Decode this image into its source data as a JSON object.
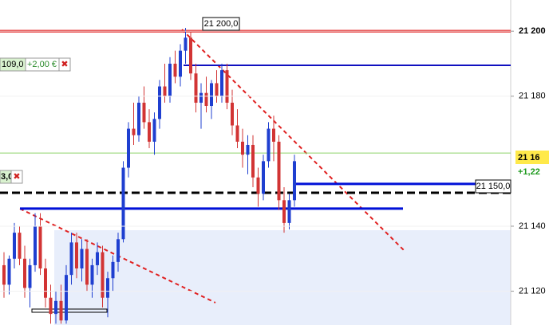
{
  "chart_data": {
    "type": "candlestick",
    "open": [
      21128,
      21122,
      21130,
      21138,
      21130,
      21121,
      21128,
      21140,
      21127,
      21118,
      21113,
      21117,
      21111,
      21125,
      21135,
      21127,
      21133,
      21122,
      21128,
      21132,
      21118,
      21124,
      21129,
      21136,
      21158,
      21170,
      21168,
      21178,
      21172,
      21166,
      21173,
      21183,
      21180,
      21190,
      21186,
      21194,
      21198,
      21187,
      21178,
      21181,
      21177,
      21184,
      21180,
      21188,
      21178,
      21171,
      21166,
      21162,
      21165,
      21155,
      21150,
      21160,
      21170,
      21166,
      21148,
      21141,
      21148
    ],
    "high": [
      21132,
      21131,
      21141,
      21140,
      21134,
      21130,
      21144,
      21144,
      21130,
      21122,
      21120,
      21122,
      21128,
      21138,
      21138,
      21136,
      21136,
      21130,
      21135,
      21134,
      21126,
      21131,
      21138,
      21160,
      21172,
      21178,
      21180,
      21183,
      21176,
      21175,
      21185,
      21190,
      21192,
      21194,
      21196,
      21201,
      21200,
      21190,
      21184,
      21186,
      21185,
      21188,
      21190,
      21190,
      21182,
      21176,
      21170,
      21168,
      21168,
      21158,
      21162,
      21172,
      21174,
      21168,
      21152,
      21150,
      21162
    ],
    "low": [
      21118,
      21119,
      21127,
      21128,
      21118,
      21115,
      21126,
      21125,
      21115,
      21110,
      21110,
      21110,
      21110,
      21122,
      21124,
      21123,
      21120,
      21118,
      21125,
      21115,
      21112,
      21120,
      21126,
      21135,
      21155,
      21165,
      21166,
      21170,
      21164,
      21162,
      21170,
      21178,
      21178,
      21184,
      21183,
      21190,
      21185,
      21175,
      21170,
      21175,
      21173,
      21178,
      21178,
      21176,
      21168,
      21164,
      21158,
      21156,
      21152,
      21146,
      21148,
      21158,
      21160,
      21145,
      21138,
      21139,
      21146
    ],
    "close": [
      21122,
      21130,
      21138,
      21130,
      21121,
      21128,
      21140,
      21127,
      21118,
      21113,
      21117,
      21111,
      21125,
      21135,
      21127,
      21133,
      21122,
      21128,
      21132,
      21118,
      21124,
      21129,
      21136,
      21158,
      21170,
      21168,
      21178,
      21172,
      21166,
      21173,
      21183,
      21180,
      21190,
      21186,
      21194,
      21198,
      21187,
      21178,
      21181,
      21177,
      21184,
      21180,
      21188,
      21178,
      21171,
      21166,
      21162,
      21165,
      21155,
      21150,
      21160,
      21170,
      21166,
      21148,
      21141,
      21148,
      21160
    ],
    "up_color": "#1f3fd0",
    "down_color": "#d23434",
    "ylim": [
      21109.6,
      21209.6
    ],
    "yticks": [
      {
        "value": 21120,
        "label": "21 120"
      },
      {
        "value": 21140,
        "label": "21 140"
      },
      {
        "value": 21180,
        "label": "21 180"
      },
      {
        "value": 21200,
        "label": "21 200"
      }
    ],
    "grid": true,
    "levels": [
      {
        "value": 21200,
        "color": "#e00000",
        "style": "solid"
      },
      {
        "value": 21189.5,
        "color": "#1010c0",
        "style": "solid"
      },
      {
        "value": 21162.5,
        "color": "#8fd46a",
        "style": "solid"
      },
      {
        "value": 21153,
        "color": "#0010d8",
        "style": "solid"
      },
      {
        "value": 21150.3,
        "color": "#000000",
        "style": "dashed"
      },
      {
        "value": 21145.4,
        "color": "#0010d8",
        "style": "solid"
      }
    ],
    "annotations": [
      "21 200,0",
      "21 150,0"
    ],
    "orders": [
      {
        "price": "109,0",
        "pnl": "+2,00 €"
      },
      {
        "price": "3,0"
      }
    ],
    "last_price": "21 16",
    "change": "+1,22"
  }
}
